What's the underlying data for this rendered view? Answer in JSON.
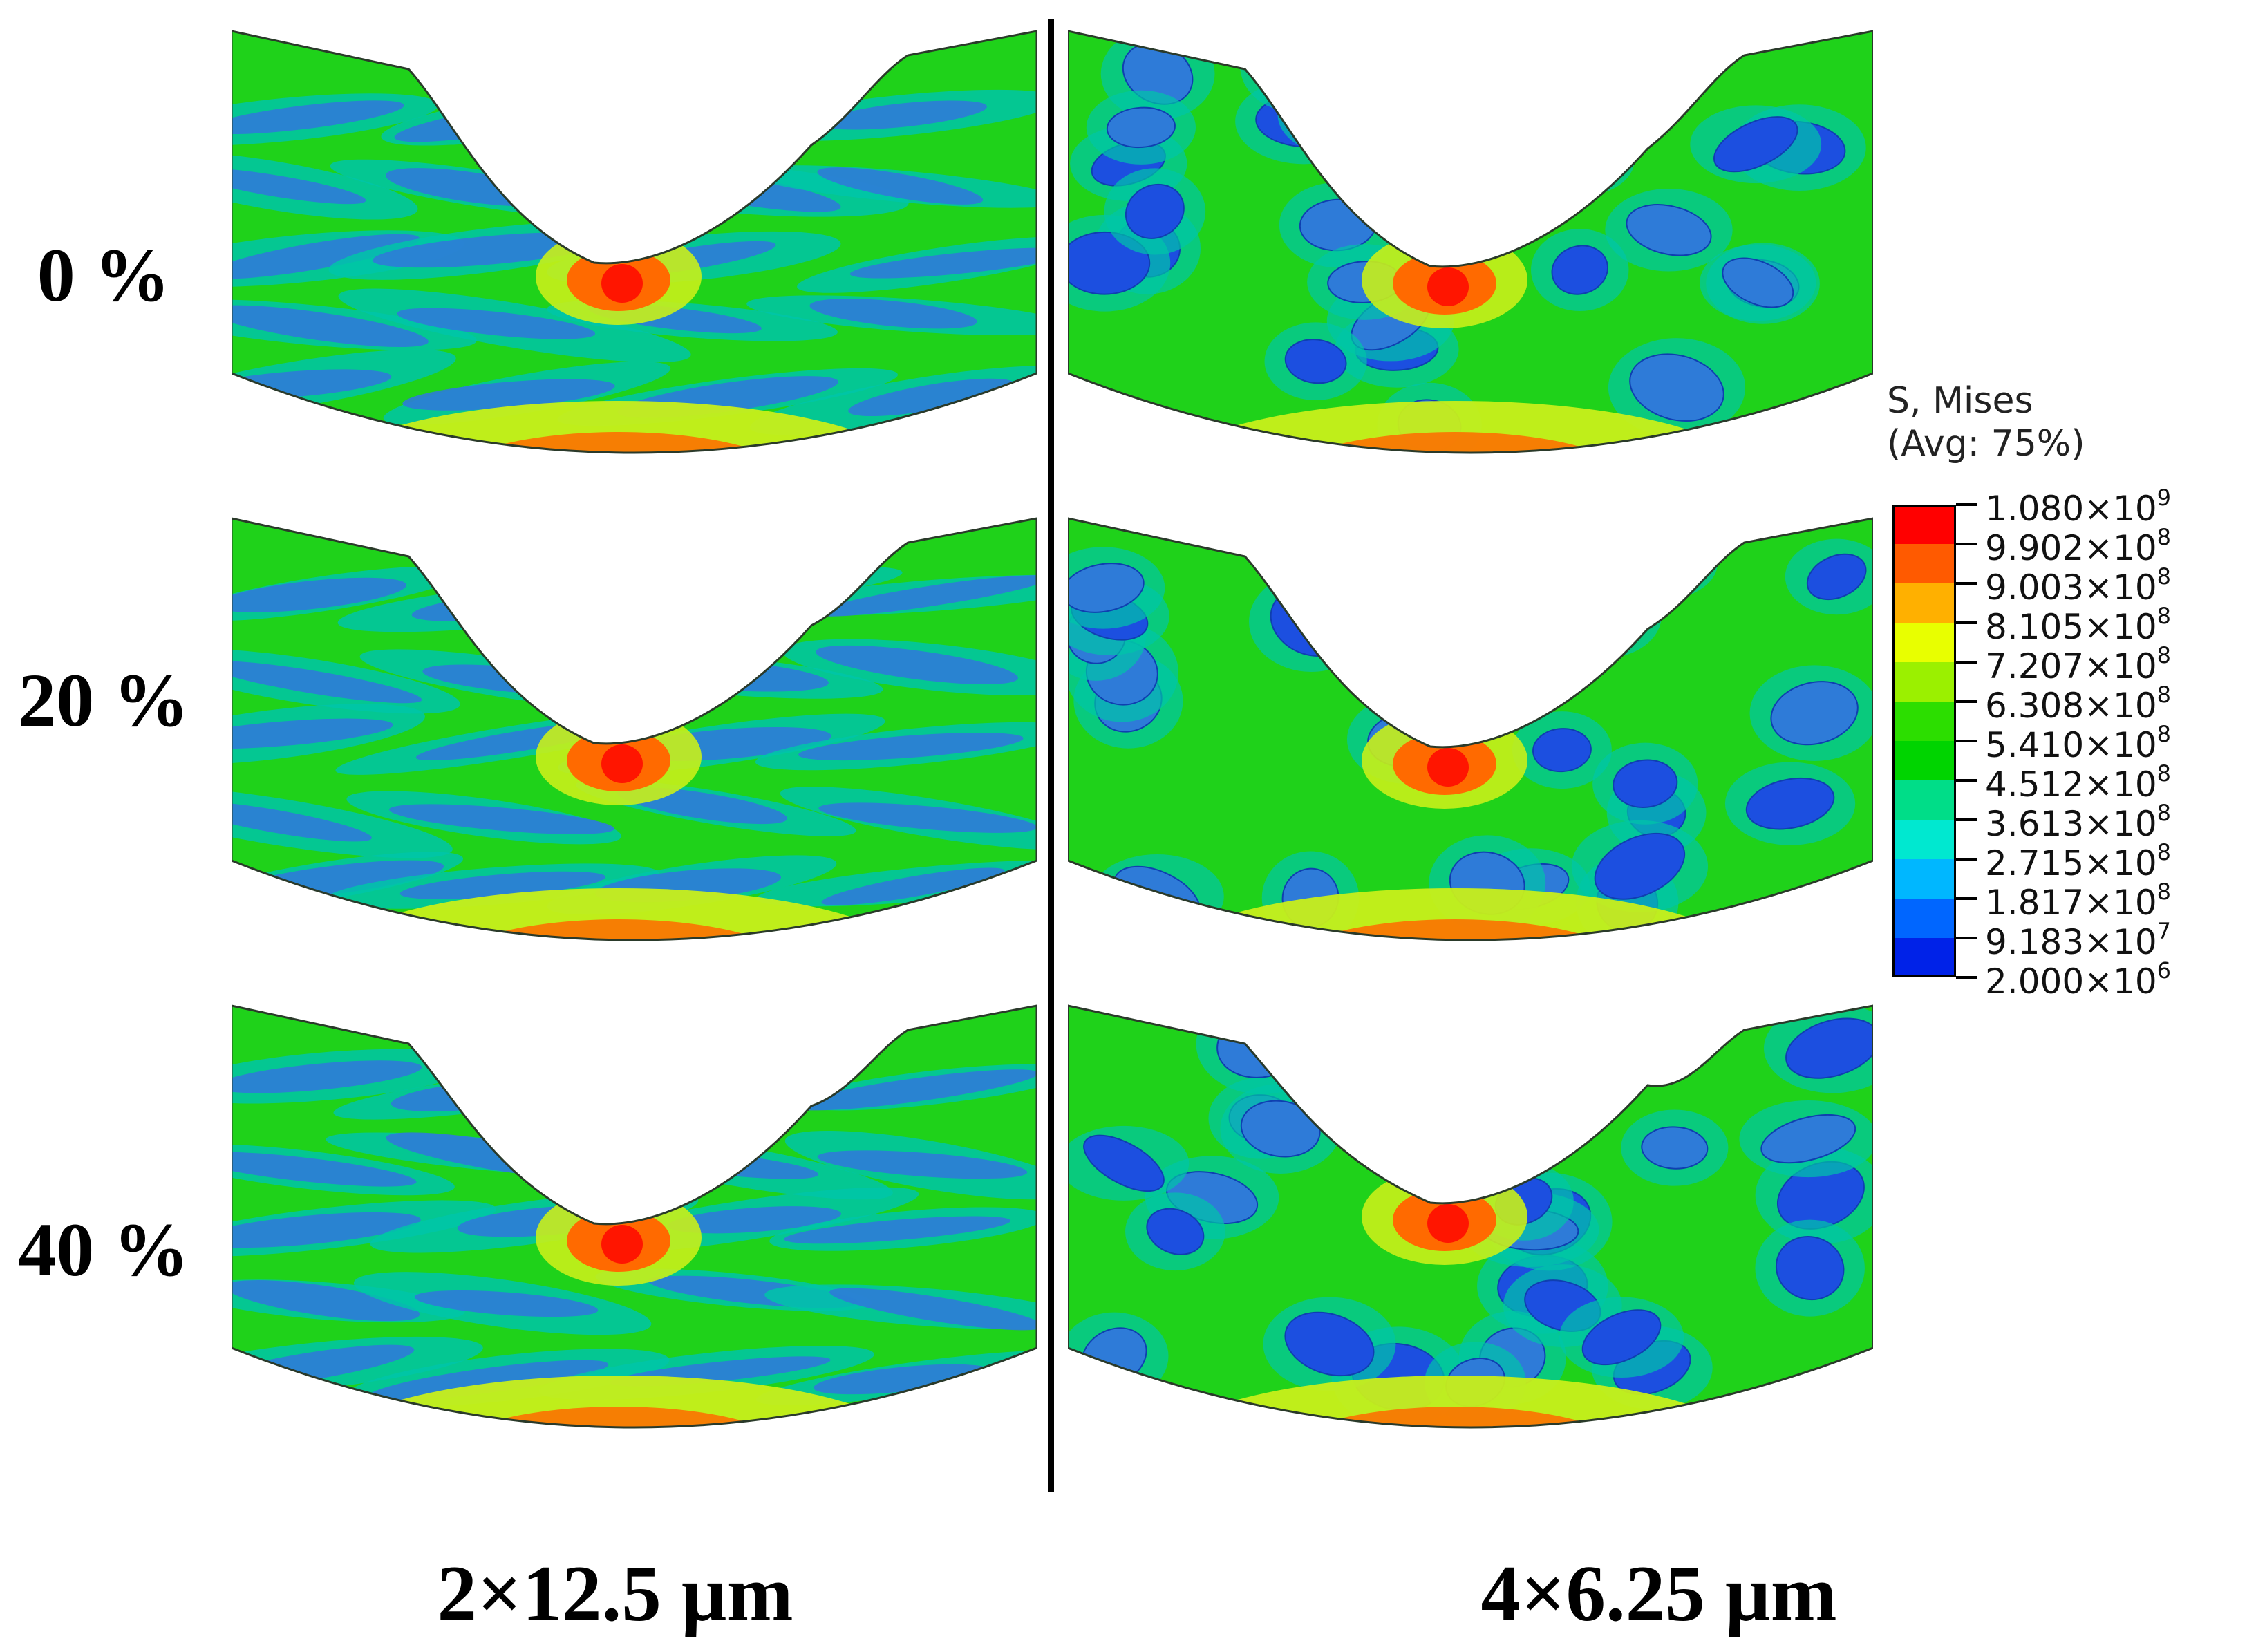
{
  "row_labels": [
    "0 %",
    "20 %",
    "40 %"
  ],
  "column_labels": [
    "2×12.5 µm",
    "4×6.25 µm"
  ],
  "legend": {
    "title_line1": "S, Mises",
    "title_line2": "(Avg: 75%)",
    "levels": [
      {
        "mantissa": "1.080",
        "times": "×10",
        "exp": "9",
        "color": "#ff0000"
      },
      {
        "mantissa": "9.902",
        "times": "×10",
        "exp": "8",
        "color": "#ff5a00"
      },
      {
        "mantissa": "9.003",
        "times": "×10",
        "exp": "8",
        "color": "#ffb000"
      },
      {
        "mantissa": "8.105",
        "times": "×10",
        "exp": "8",
        "color": "#e8ff00"
      },
      {
        "mantissa": "7.207",
        "times": "×10",
        "exp": "8",
        "color": "#9bf000"
      },
      {
        "mantissa": "6.308",
        "times": "×10",
        "exp": "8",
        "color": "#2cde00"
      },
      {
        "mantissa": "5.410",
        "times": "×10",
        "exp": "8",
        "color": "#00d400"
      },
      {
        "mantissa": "4.512",
        "times": "×10",
        "exp": "8",
        "color": "#00dd88"
      },
      {
        "mantissa": "3.613",
        "times": "×10",
        "exp": "8",
        "color": "#00e8d0"
      },
      {
        "mantissa": "2.715",
        "times": "×10",
        "exp": "8",
        "color": "#00b7ff"
      },
      {
        "mantissa": "1.817",
        "times": "×10",
        "exp": "8",
        "color": "#0066ff"
      },
      {
        "mantissa": "9.183",
        "times": "×10",
        "exp": "7",
        "color": "#0022e8"
      },
      {
        "mantissa": "2.000",
        "times": "×10",
        "exp": "6",
        "color": "#0000ff"
      }
    ]
  },
  "colors": {
    "background_field": "#1fd21a",
    "low_stress_fiber": "#2e7bd8",
    "mid_stress_band": "#00c6a8",
    "high_stress_zone": "#ff6a00",
    "peak_stress": "#ff1500",
    "yellow_zone": "#c8ef1a"
  }
}
